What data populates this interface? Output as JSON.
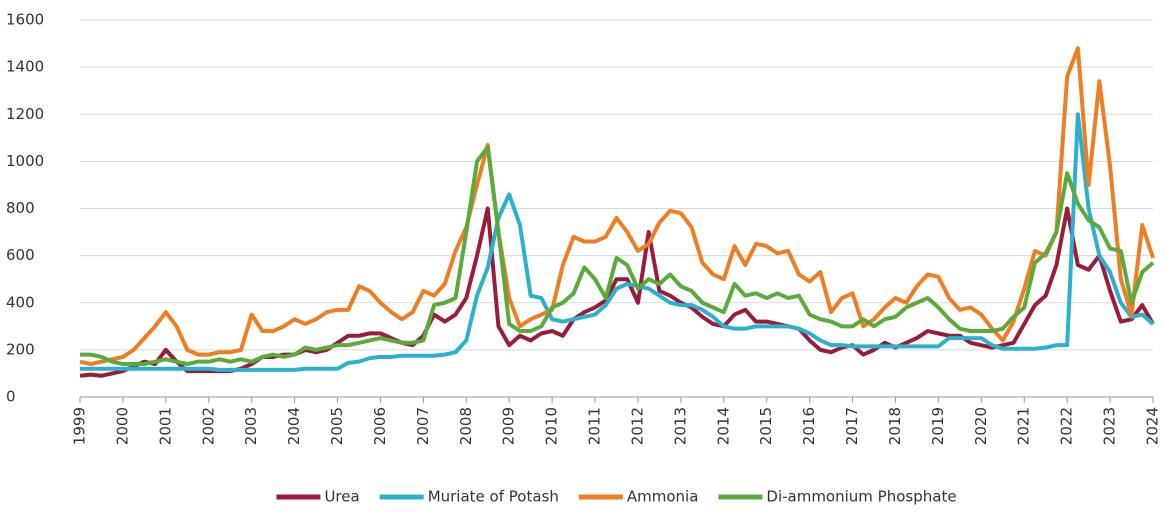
{
  "chart_data": {
    "type": "line",
    "x": [
      1999,
      1999.25,
      1999.5,
      1999.75,
      2000,
      2000.25,
      2000.5,
      2000.75,
      2001,
      2001.25,
      2001.5,
      2001.75,
      2002,
      2002.25,
      2002.5,
      2002.75,
      2003,
      2003.25,
      2003.5,
      2003.75,
      2004,
      2004.25,
      2004.5,
      2004.75,
      2005,
      2005.25,
      2005.5,
      2005.75,
      2006,
      2006.25,
      2006.5,
      2006.75,
      2007,
      2007.25,
      2007.5,
      2007.75,
      2008,
      2008.25,
      2008.5,
      2008.75,
      2009,
      2009.25,
      2009.5,
      2009.75,
      2010,
      2010.25,
      2010.5,
      2010.75,
      2011,
      2011.25,
      2011.5,
      2011.75,
      2012,
      2012.25,
      2012.5,
      2012.75,
      2013,
      2013.25,
      2013.5,
      2013.75,
      2014,
      2014.25,
      2014.5,
      2014.75,
      2015,
      2015.25,
      2015.5,
      2015.75,
      2016,
      2016.25,
      2016.5,
      2016.75,
      2017,
      2017.25,
      2017.5,
      2017.75,
      2018,
      2018.25,
      2018.5,
      2018.75,
      2019,
      2019.25,
      2019.5,
      2019.75,
      2020,
      2020.25,
      2020.5,
      2020.75,
      2021,
      2021.25,
      2021.5,
      2021.75,
      2022,
      2022.25,
      2022.5,
      2022.75,
      2023,
      2023.25,
      2023.5,
      2023.75,
      2024
    ],
    "series": [
      {
        "name": "Urea",
        "color": "#9b1b3a",
        "values": [
          90,
          95,
          90,
          100,
          110,
          130,
          150,
          140,
          200,
          150,
          110,
          110,
          110,
          110,
          110,
          120,
          140,
          170,
          170,
          180,
          180,
          200,
          190,
          200,
          230,
          260,
          260,
          270,
          270,
          250,
          230,
          220,
          260,
          350,
          320,
          350,
          420,
          600,
          800,
          300,
          220,
          260,
          240,
          270,
          280,
          260,
          330,
          360,
          380,
          410,
          500,
          500,
          400,
          700,
          450,
          430,
          400,
          380,
          340,
          310,
          300,
          350,
          370,
          320,
          320,
          310,
          300,
          290,
          240,
          200,
          190,
          210,
          220,
          180,
          200,
          230,
          210,
          230,
          250,
          280,
          270,
          260,
          260,
          230,
          220,
          210,
          220,
          230,
          310,
          390,
          430,
          560,
          800,
          560,
          540,
          600,
          450,
          320,
          330,
          390,
          310
        ]
      },
      {
        "name": "Muriate of Potash",
        "color": "#2bb1d0",
        "values": [
          120,
          120,
          120,
          120,
          120,
          120,
          120,
          120,
          120,
          120,
          120,
          120,
          120,
          115,
          115,
          115,
          115,
          115,
          115,
          115,
          115,
          120,
          120,
          120,
          120,
          145,
          150,
          165,
          170,
          170,
          175,
          175,
          175,
          175,
          180,
          190,
          240,
          430,
          550,
          760,
          860,
          730,
          430,
          420,
          330,
          320,
          330,
          340,
          350,
          390,
          460,
          480,
          470,
          460,
          430,
          400,
          390,
          390,
          370,
          340,
          300,
          290,
          290,
          300,
          300,
          300,
          300,
          290,
          270,
          240,
          220,
          220,
          215,
          215,
          215,
          215,
          215,
          215,
          215,
          215,
          215,
          250,
          250,
          250,
          250,
          220,
          205,
          205,
          205,
          205,
          210,
          220,
          220,
          1200,
          800,
          600,
          530,
          400,
          340,
          350,
          310
        ]
      },
      {
        "name": "Ammonia",
        "color": "#ef7d22",
        "values": [
          150,
          140,
          150,
          160,
          170,
          200,
          250,
          300,
          360,
          300,
          200,
          180,
          180,
          190,
          190,
          200,
          350,
          280,
          280,
          300,
          330,
          310,
          330,
          360,
          370,
          370,
          470,
          450,
          400,
          360,
          330,
          360,
          450,
          430,
          480,
          620,
          720,
          900,
          1070,
          700,
          420,
          300,
          330,
          350,
          370,
          560,
          680,
          660,
          660,
          680,
          760,
          700,
          620,
          650,
          740,
          790,
          780,
          720,
          570,
          520,
          500,
          640,
          560,
          650,
          640,
          610,
          620,
          520,
          490,
          530,
          360,
          420,
          440,
          300,
          330,
          380,
          420,
          400,
          470,
          520,
          510,
          420,
          370,
          380,
          350,
          290,
          240,
          320,
          460,
          620,
          600,
          700,
          1360,
          1480,
          900,
          1340,
          980,
          500,
          350,
          730,
          590
        ]
      },
      {
        "name": "Di-ammonium Phosphate",
        "color": "#5aaa3c",
        "values": [
          180,
          180,
          170,
          150,
          140,
          140,
          140,
          150,
          160,
          150,
          140,
          150,
          150,
          160,
          150,
          160,
          150,
          170,
          180,
          170,
          180,
          210,
          200,
          210,
          220,
          220,
          230,
          240,
          250,
          240,
          230,
          230,
          240,
          390,
          400,
          420,
          700,
          1000,
          1060,
          700,
          310,
          280,
          280,
          300,
          380,
          400,
          440,
          550,
          500,
          420,
          590,
          560,
          460,
          500,
          480,
          520,
          470,
          450,
          400,
          380,
          360,
          480,
          430,
          440,
          420,
          440,
          420,
          430,
          350,
          330,
          320,
          300,
          300,
          330,
          300,
          330,
          340,
          380,
          400,
          420,
          380,
          330,
          290,
          280,
          280,
          280,
          290,
          340,
          380,
          570,
          610,
          700,
          950,
          820,
          750,
          720,
          630,
          620,
          400,
          530,
          570
        ]
      }
    ],
    "xlim": [
      1999,
      2024
    ],
    "xticks": [
      1999,
      2000,
      2001,
      2002,
      2003,
      2004,
      2005,
      2006,
      2007,
      2008,
      2009,
      2010,
      2011,
      2012,
      2013,
      2014,
      2015,
      2016,
      2017,
      2018,
      2019,
      2020,
      2021,
      2022,
      2023,
      2024
    ],
    "ylim": [
      0,
      1600
    ],
    "yticks": [
      0,
      200,
      400,
      600,
      800,
      1000,
      1200,
      1400,
      1600
    ],
    "grid": true
  }
}
